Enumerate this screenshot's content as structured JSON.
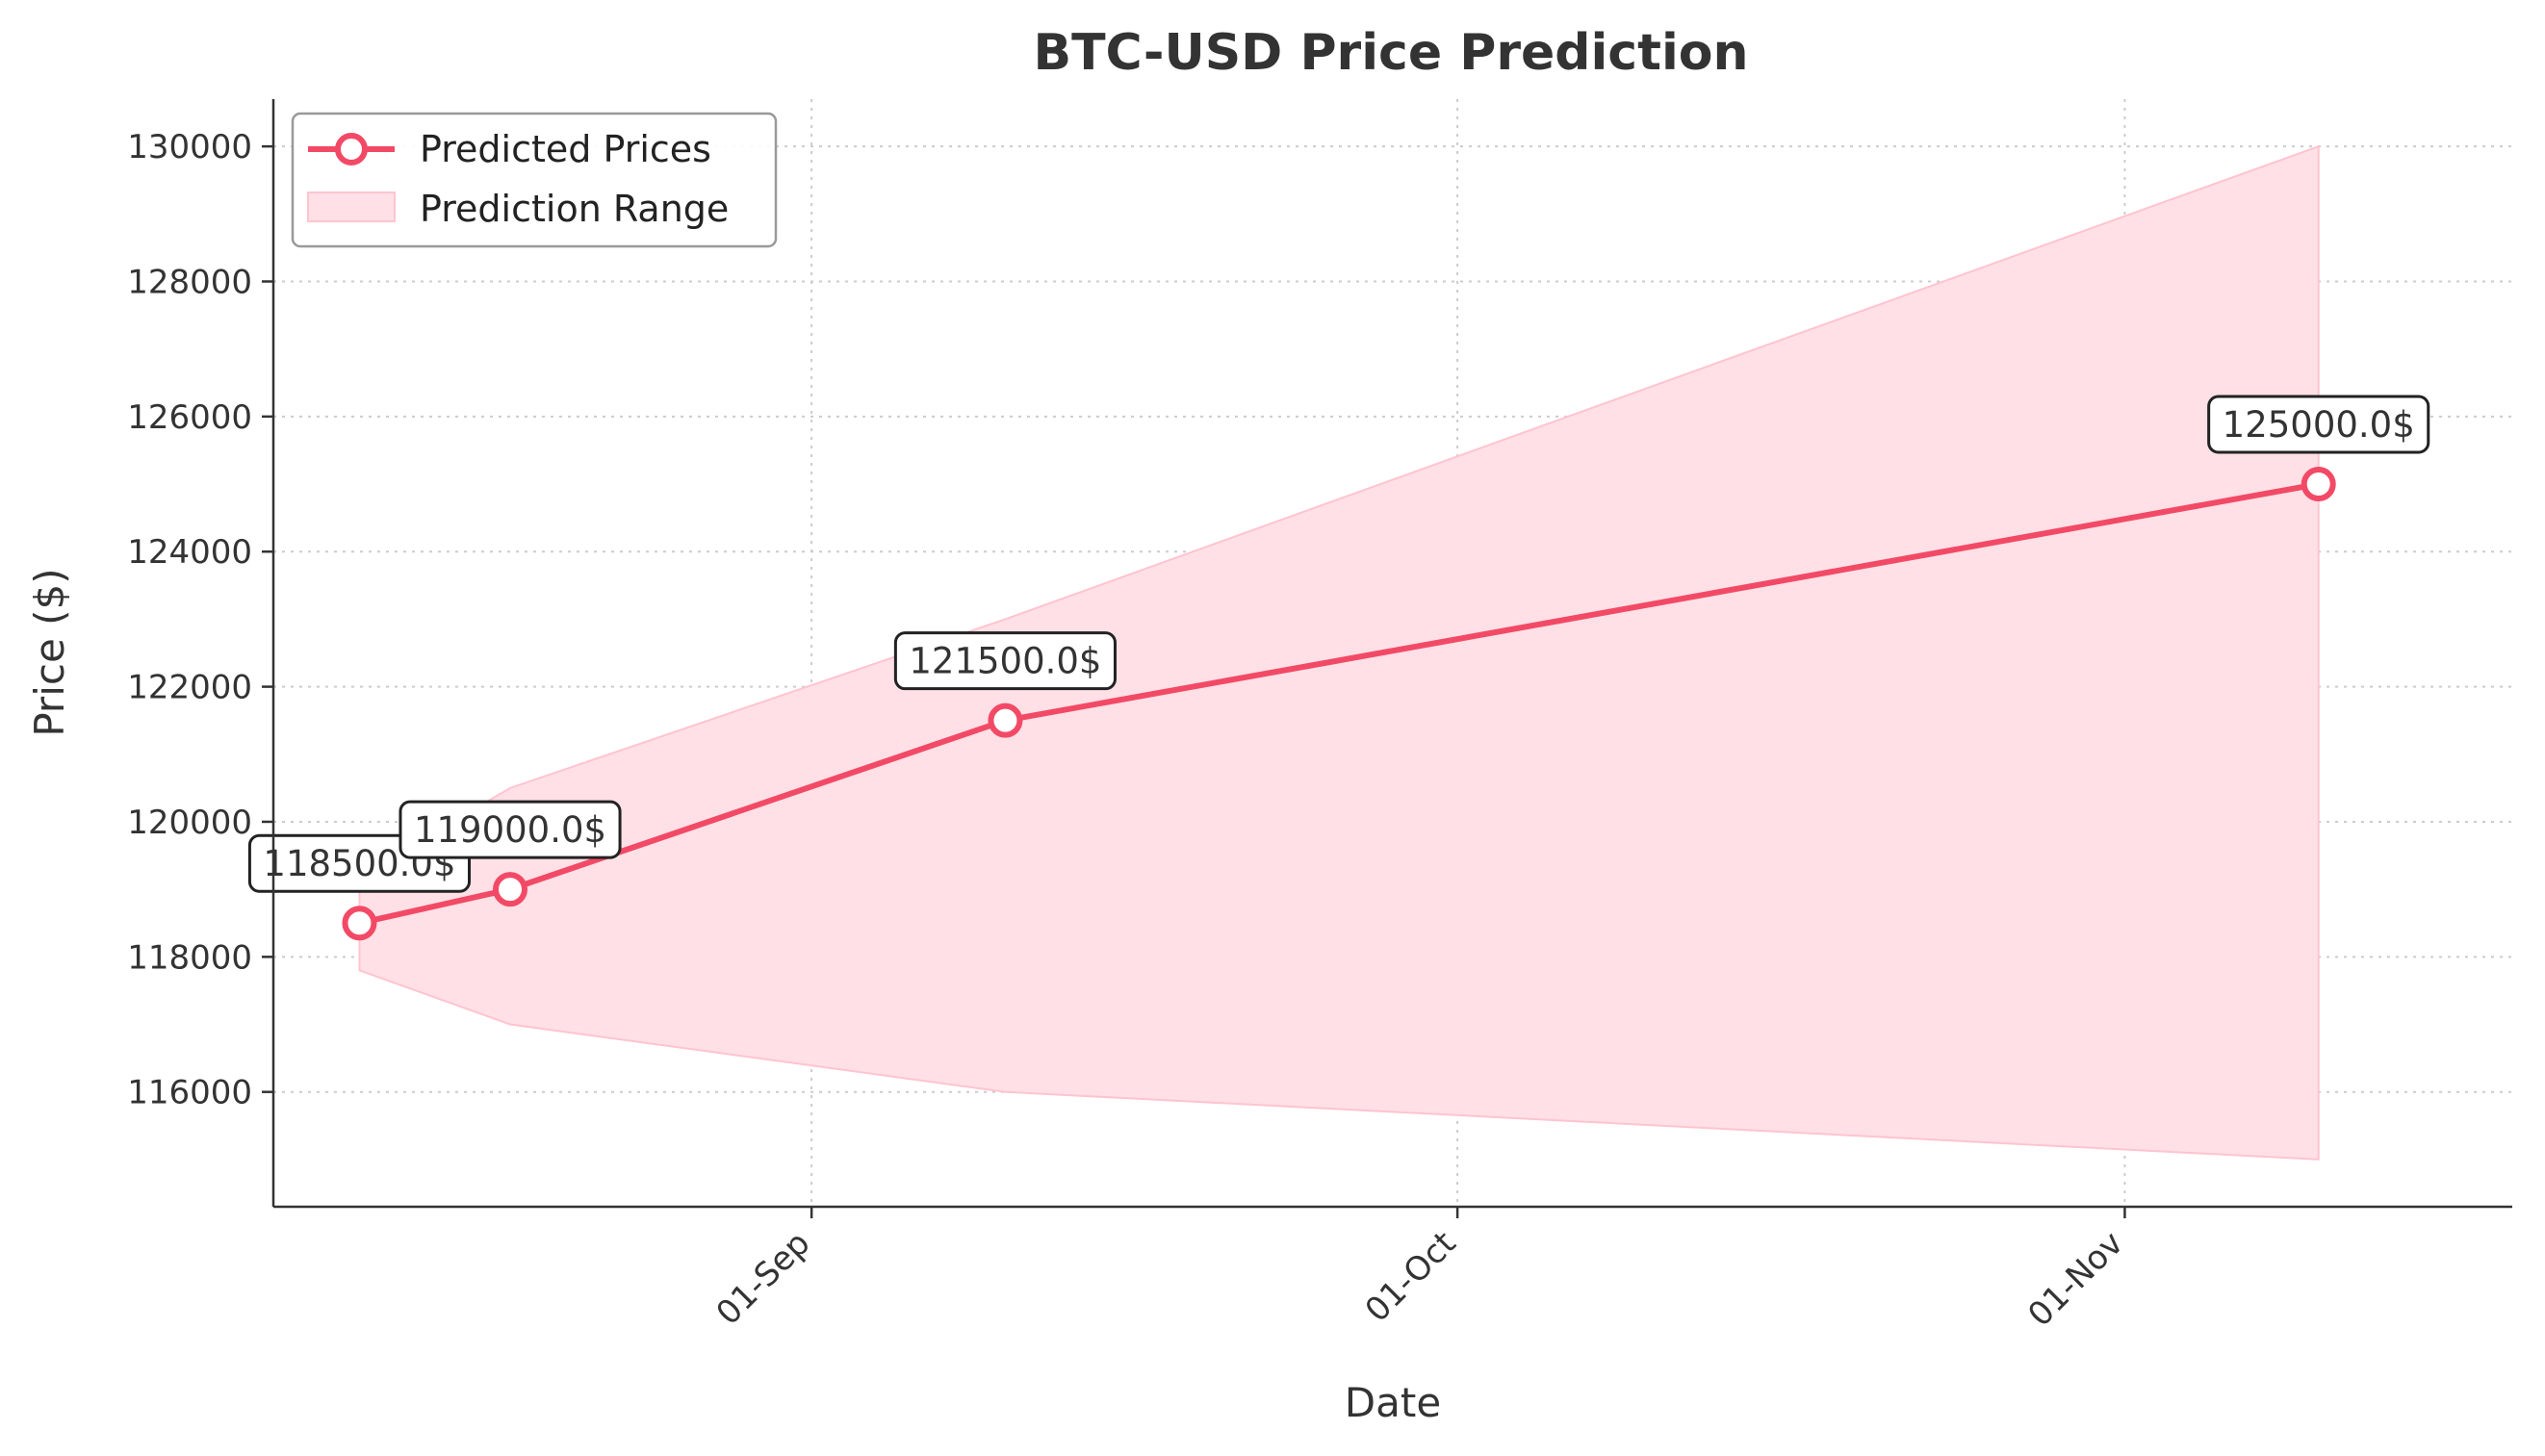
{
  "chart_data": {
    "type": "line",
    "title": "BTC-USD Price Prediction",
    "xlabel": "Date",
    "ylabel": "Price ($)",
    "x_ticks": [
      {
        "date": "2025-09-01",
        "label": "01-Sep"
      },
      {
        "date": "2025-10-01",
        "label": "01-Oct"
      },
      {
        "date": "2025-11-01",
        "label": "01-Nov"
      }
    ],
    "y_ticks": [
      116000,
      118000,
      120000,
      122000,
      124000,
      126000,
      128000,
      130000
    ],
    "xlim": [
      "2025-08-07",
      "2025-11-19"
    ],
    "ylim": [
      114300,
      130700
    ],
    "grid": true,
    "legend_position": "top-left",
    "series": [
      {
        "name": "Predicted Prices",
        "points": [
          {
            "x": "2025-08-11",
            "y": 118500,
            "label": "118500.0$"
          },
          {
            "x": "2025-08-18",
            "y": 119000,
            "label": "119000.0$"
          },
          {
            "x": "2025-09-10",
            "y": 121500,
            "label": "121500.0$"
          },
          {
            "x": "2025-11-10",
            "y": 125000,
            "label": "125000.0$"
          }
        ]
      }
    ],
    "range": {
      "name": "Prediction Range",
      "x": [
        "2025-08-11",
        "2025-08-18",
        "2025-09-10",
        "2025-11-10"
      ],
      "lower": [
        117800,
        117000,
        116000,
        115000
      ],
      "upper": [
        119200,
        120500,
        123000,
        130000
      ]
    },
    "colors": {
      "line": "#f24a66",
      "fill": "#ffe0e6",
      "fill_edge": "#ffc4cf",
      "axis": "#333333",
      "grid": "#cccccc"
    }
  }
}
